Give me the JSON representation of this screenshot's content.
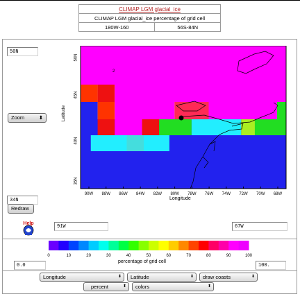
{
  "info": {
    "title": "CLIMAP LGM glacial_ice",
    "subtitle": "CLIMAP LGM glacial_ice percentage of grid cell",
    "lon_range": "180W-160",
    "lat_range": "56S-84N"
  },
  "controls": {
    "lat_max": "50N",
    "lat_min": "34N",
    "zoom_label": "Zoom",
    "redraw_label": "Redraw",
    "help_label": "Help",
    "lon_min": "91W",
    "lon_max": "67W",
    "cb_min": "0.0",
    "cb_max": "100.",
    "dropdowns": [
      {
        "id": "xaxis",
        "value": "Longitude"
      },
      {
        "id": "yaxis",
        "value": "Latitude"
      },
      {
        "id": "coasts",
        "value": "draw coasts"
      },
      {
        "id": "units",
        "value": "percent"
      },
      {
        "id": "palette",
        "value": "colors"
      }
    ]
  },
  "plot": {
    "ylabel": "Latitude",
    "xlabel": "Longitude",
    "x_ticks": [
      "90W",
      "88W",
      "86W",
      "84W",
      "82W",
      "80W",
      "78W",
      "76W",
      "74W",
      "72W",
      "70W",
      "68W"
    ],
    "y_ticks": [
      "50N",
      "45N",
      "40N",
      "35N"
    ],
    "annotation": "2",
    "colors": {
      "magenta": "#ff00ff",
      "red": "#ee1111",
      "orange_red": "#ff3300",
      "pink_red": "#ff2a55",
      "green": "#22dd22",
      "cyan": "#22eeff",
      "blue": "#2222ee",
      "yellow_green": "#aaee22"
    }
  },
  "colorbar": {
    "label": "percentage of grid cell",
    "ticks": [
      "0",
      "10",
      "20",
      "30",
      "40",
      "50",
      "60",
      "70",
      "80",
      "90",
      "100"
    ],
    "colors": [
      "#6a00ff",
      "#2200ff",
      "#0044ff",
      "#0088ff",
      "#00ccff",
      "#00ffee",
      "#00ff99",
      "#00ff44",
      "#33ff00",
      "#88ff00",
      "#ccff00",
      "#ffff00",
      "#ffcc00",
      "#ff8800",
      "#ff4400",
      "#ff0000",
      "#ff0066",
      "#ff00aa",
      "#ff00ff",
      "#ee00ff"
    ]
  }
}
